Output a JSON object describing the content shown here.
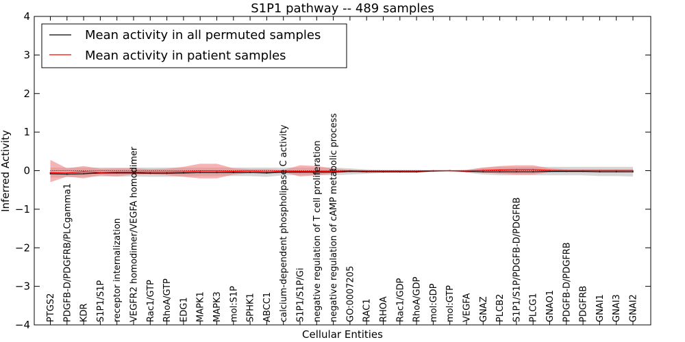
{
  "chart_data": {
    "type": "line",
    "title": "S1P1 pathway -- 489 samples",
    "xlabel": "Cellular Entities",
    "ylabel": "Inferred Activity",
    "ylim": [
      -4,
      4
    ],
    "yticks": [
      -4,
      -3,
      -2,
      -1,
      0,
      1,
      2,
      3,
      4
    ],
    "ytick_labels": [
      "−4",
      "−3",
      "−2",
      "−1",
      "0",
      "1",
      "2",
      "3",
      "4"
    ],
    "categories": [
      "PTGS2",
      "PDGFB-D/PDGFRB/PLCgamma1",
      "KDR",
      "S1P1/S1P",
      "receptor internalization",
      "VEGFR2 homodimer/VEGFA homodimer",
      "Rac1/GTP",
      "RhoA/GTP",
      "EDG1",
      "MAPK1",
      "MAPK3",
      "mol:S1P",
      "SPHK1",
      "ABCC1",
      "calcium-dependent phospholipase C activity",
      "S1P1/S1P/Gi",
      "negative regulation of T cell proliferation",
      "negative regulation of cAMP metabolic process",
      "GO:0007205",
      "RAC1",
      "RHOA",
      "Rac1/GDP",
      "RhoA/GDP",
      "mol:GDP",
      "mol:GTP",
      "VEGFA",
      "GNAZ",
      "PLCB2",
      "S1P1/S1P/PDGFB-D/PDGFRB",
      "PLCG1",
      "GNAO1",
      "PDGFB-D/PDGFRB",
      "PDGFRB",
      "GNAI1",
      "GNAI3",
      "GNAI2"
    ],
    "legend": {
      "position": "top-left",
      "entries": [
        "Mean activity in all permuted samples",
        "Mean activity in patient samples"
      ]
    },
    "series": [
      {
        "name": "Mean activity in all permuted samples",
        "color": "#000000",
        "band_color": "#b0b0b0",
        "values": [
          -0.08,
          -0.09,
          -0.08,
          -0.06,
          -0.06,
          -0.06,
          -0.07,
          -0.07,
          -0.06,
          -0.05,
          -0.05,
          -0.05,
          -0.05,
          -0.06,
          -0.04,
          -0.04,
          -0.04,
          -0.04,
          -0.02,
          -0.03,
          -0.03,
          -0.03,
          -0.03,
          -0.01,
          0.0,
          -0.02,
          -0.03,
          -0.03,
          -0.03,
          -0.03,
          -0.02,
          -0.02,
          -0.02,
          -0.03,
          -0.03,
          -0.03
        ],
        "lower": [
          -0.18,
          -0.17,
          -0.16,
          -0.15,
          -0.15,
          -0.15,
          -0.16,
          -0.16,
          -0.15,
          -0.14,
          -0.14,
          -0.14,
          -0.14,
          -0.16,
          -0.12,
          -0.12,
          -0.12,
          -0.12,
          -0.1,
          -0.08,
          -0.06,
          -0.06,
          -0.06,
          -0.03,
          -0.02,
          -0.05,
          -0.1,
          -0.12,
          -0.12,
          -0.12,
          -0.12,
          -0.12,
          -0.12,
          -0.14,
          -0.14,
          -0.15
        ],
        "upper": [
          0.08,
          0.08,
          0.08,
          0.08,
          0.08,
          0.08,
          0.08,
          0.08,
          0.08,
          0.08,
          0.08,
          0.08,
          0.08,
          0.08,
          0.08,
          0.08,
          0.08,
          0.08,
          0.06,
          0.03,
          0.02,
          0.02,
          0.02,
          0.01,
          0.01,
          0.02,
          0.08,
          0.1,
          0.1,
          0.1,
          0.1,
          0.1,
          0.1,
          0.1,
          0.1,
          0.1
        ]
      },
      {
        "name": "Mean activity in patient samples",
        "color": "#ff0000",
        "band_color": "#f08080",
        "values": [
          -0.05,
          -0.06,
          -0.03,
          -0.05,
          -0.04,
          -0.04,
          -0.04,
          -0.04,
          -0.03,
          -0.01,
          -0.01,
          -0.02,
          -0.01,
          -0.03,
          -0.01,
          -0.02,
          -0.02,
          -0.02,
          0.0,
          -0.01,
          -0.01,
          -0.01,
          -0.01,
          0.0,
          0.0,
          -0.01,
          0.01,
          0.02,
          0.03,
          0.03,
          0.01,
          0.0,
          0.0,
          0.0,
          0.0,
          0.0
        ],
        "lower": [
          -0.3,
          -0.15,
          -0.2,
          -0.12,
          -0.15,
          -0.1,
          -0.1,
          -0.12,
          -0.16,
          -0.2,
          -0.2,
          -0.1,
          -0.06,
          -0.06,
          -0.04,
          -0.15,
          -0.12,
          -0.08,
          -0.02,
          -0.02,
          -0.02,
          -0.02,
          -0.02,
          -0.01,
          -0.01,
          -0.02,
          -0.05,
          -0.08,
          -0.1,
          -0.1,
          -0.04,
          -0.03,
          -0.03,
          -0.03,
          -0.03,
          -0.02
        ],
        "upper": [
          0.28,
          0.06,
          0.12,
          0.05,
          0.06,
          0.06,
          0.04,
          0.05,
          0.1,
          0.18,
          0.18,
          0.06,
          0.04,
          0.04,
          0.02,
          0.14,
          0.12,
          0.06,
          0.02,
          0.01,
          0.01,
          0.01,
          0.01,
          0.01,
          0.01,
          0.02,
          0.08,
          0.12,
          0.14,
          0.14,
          0.06,
          0.04,
          0.04,
          0.04,
          0.04,
          0.04
        ]
      }
    ],
    "reference_line": {
      "y": 0,
      "style": "dotted",
      "color": "#000000"
    }
  }
}
